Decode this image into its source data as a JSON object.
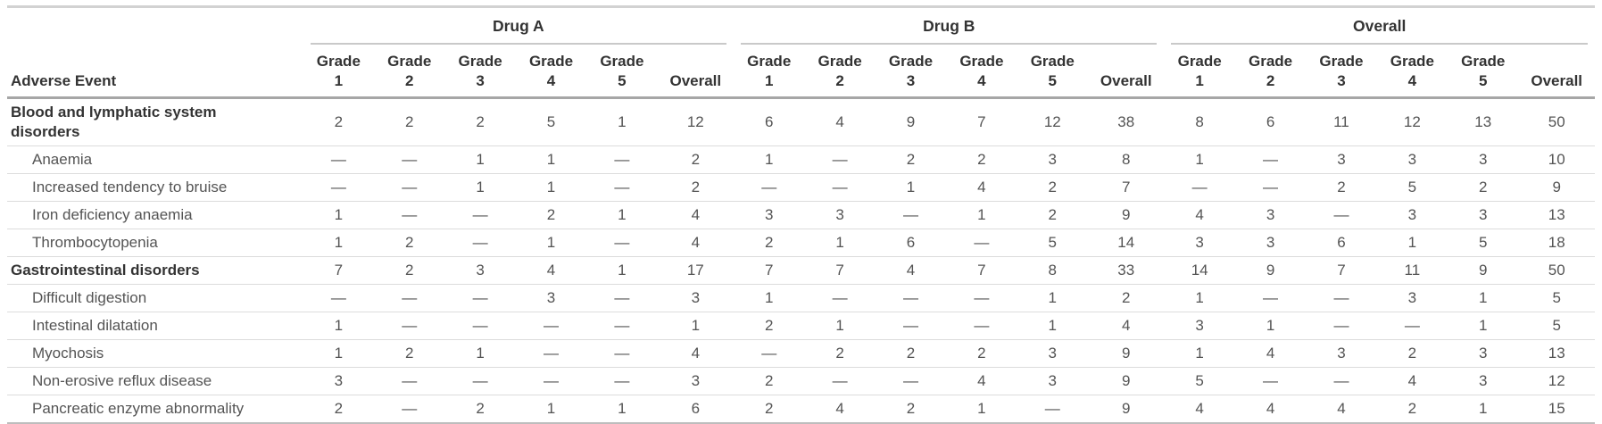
{
  "chart_data": {
    "type": "table",
    "row_header": "Adverse Event",
    "column_groups": [
      "Drug A",
      "Drug B",
      "Overall"
    ],
    "sub_columns": [
      "Grade 1",
      "Grade 2",
      "Grade 3",
      "Grade 4",
      "Grade 5",
      "Overall"
    ],
    "missing_symbol": "—",
    "rows": [
      {
        "label": "Blood and lymphatic system disorders",
        "level": "group",
        "drug_a": [
          "2",
          "2",
          "2",
          "5",
          "1",
          "12"
        ],
        "drug_b": [
          "6",
          "4",
          "9",
          "7",
          "12",
          "38"
        ],
        "overall": [
          "8",
          "6",
          "11",
          "12",
          "13",
          "50"
        ]
      },
      {
        "label": "Anaemia",
        "level": "sub",
        "drug_a": [
          "—",
          "—",
          "1",
          "1",
          "—",
          "2"
        ],
        "drug_b": [
          "1",
          "—",
          "2",
          "2",
          "3",
          "8"
        ],
        "overall": [
          "1",
          "—",
          "3",
          "3",
          "3",
          "10"
        ]
      },
      {
        "label": "Increased tendency to bruise",
        "level": "sub",
        "drug_a": [
          "—",
          "—",
          "1",
          "1",
          "—",
          "2"
        ],
        "drug_b": [
          "—",
          "—",
          "1",
          "4",
          "2",
          "7"
        ],
        "overall": [
          "—",
          "—",
          "2",
          "5",
          "2",
          "9"
        ]
      },
      {
        "label": "Iron deficiency anaemia",
        "level": "sub",
        "drug_a": [
          "1",
          "—",
          "—",
          "2",
          "1",
          "4"
        ],
        "drug_b": [
          "3",
          "3",
          "—",
          "1",
          "2",
          "9"
        ],
        "overall": [
          "4",
          "3",
          "—",
          "3",
          "3",
          "13"
        ]
      },
      {
        "label": "Thrombocytopenia",
        "level": "sub",
        "drug_a": [
          "1",
          "2",
          "—",
          "1",
          "—",
          "4"
        ],
        "drug_b": [
          "2",
          "1",
          "6",
          "—",
          "5",
          "14"
        ],
        "overall": [
          "3",
          "3",
          "6",
          "1",
          "5",
          "18"
        ]
      },
      {
        "label": "Gastrointestinal disorders",
        "level": "group",
        "drug_a": [
          "7",
          "2",
          "3",
          "4",
          "1",
          "17"
        ],
        "drug_b": [
          "7",
          "7",
          "4",
          "7",
          "8",
          "33"
        ],
        "overall": [
          "14",
          "9",
          "7",
          "11",
          "9",
          "50"
        ]
      },
      {
        "label": "Difficult digestion",
        "level": "sub",
        "drug_a": [
          "—",
          "—",
          "—",
          "3",
          "—",
          "3"
        ],
        "drug_b": [
          "1",
          "—",
          "—",
          "—",
          "1",
          "2"
        ],
        "overall": [
          "1",
          "—",
          "—",
          "3",
          "1",
          "5"
        ]
      },
      {
        "label": "Intestinal dilatation",
        "level": "sub",
        "drug_a": [
          "1",
          "—",
          "—",
          "—",
          "—",
          "1"
        ],
        "drug_b": [
          "2",
          "1",
          "—",
          "—",
          "1",
          "4"
        ],
        "overall": [
          "3",
          "1",
          "—",
          "—",
          "1",
          "5"
        ]
      },
      {
        "label": "Myochosis",
        "level": "sub",
        "drug_a": [
          "1",
          "2",
          "1",
          "—",
          "—",
          "4"
        ],
        "drug_b": [
          "—",
          "2",
          "2",
          "2",
          "3",
          "9"
        ],
        "overall": [
          "1",
          "4",
          "3",
          "2",
          "3",
          "13"
        ]
      },
      {
        "label": "Non-erosive reflux disease",
        "level": "sub",
        "drug_a": [
          "3",
          "—",
          "—",
          "—",
          "—",
          "3"
        ],
        "drug_b": [
          "2",
          "—",
          "—",
          "4",
          "3",
          "9"
        ],
        "overall": [
          "5",
          "—",
          "—",
          "4",
          "3",
          "12"
        ]
      },
      {
        "label": "Pancreatic enzyme abnormality",
        "level": "sub",
        "drug_a": [
          "2",
          "—",
          "2",
          "1",
          "1",
          "6"
        ],
        "drug_b": [
          "2",
          "4",
          "2",
          "1",
          "—",
          "9"
        ],
        "overall": [
          "4",
          "4",
          "4",
          "2",
          "1",
          "15"
        ]
      }
    ]
  },
  "colors": {
    "text_bold": "#333333",
    "text_body": "#545454",
    "rule_top": "#d2d2d2",
    "rule_spanner": "#c9c9c9",
    "rule_header": "#a6a6a6",
    "rule_row": "#dcdcdc",
    "rule_bottom": "#bdbdbd"
  }
}
